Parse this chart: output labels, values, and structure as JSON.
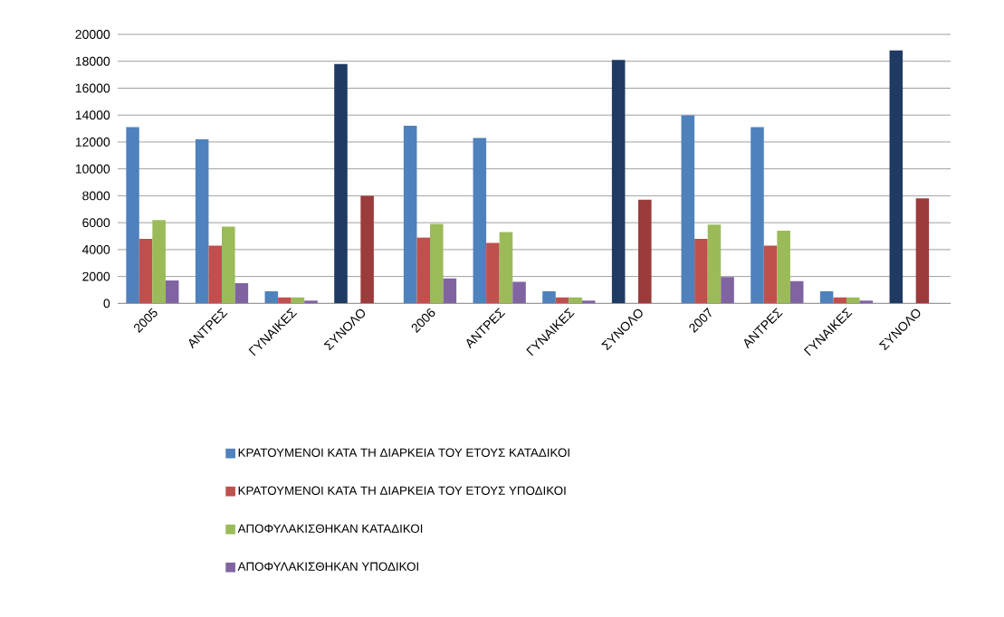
{
  "chart_data": {
    "type": "bar",
    "categories": [
      "2005",
      "ΑΝΤΡΕΣ",
      "ΓΥΝΑΙΚΕΣ",
      "ΣΥΝΟΛΟ",
      "2006",
      "ΑΝΤΡΕΣ",
      "ΓΥΝΑΙΚΕΣ",
      "ΣΥΝΟΛΟ",
      "2007",
      "ΑΝΤΡΕΣ",
      "ΓΥΝΑΙΚΕΣ",
      "ΣΥΝΟΛΟ"
    ],
    "series": [
      {
        "name": "ΚΡΑΤΟΥΜΕΝΟΙ ΚΑΤΑ ΤΗ ΔΙΑΡΚΕΙΑ ΤΟΥ ΕΤΟΥΣ ΚΑΤΑΔΙΚΟΙ",
        "color": "#4f81bd",
        "values": [
          13100,
          12200,
          900,
          17800,
          13200,
          12300,
          900,
          18100,
          14000,
          13100,
          900,
          18800
        ],
        "colors": [
          "#4f81bd",
          "#4f81bd",
          "#4f81bd",
          "#1f3b63",
          "#4f81bd",
          "#4f81bd",
          "#4f81bd",
          "#1f3b63",
          "#4f81bd",
          "#4f81bd",
          "#4f81bd",
          "#1f3b63"
        ]
      },
      {
        "name": "ΚΡΑΤΟΥΜΕΝΟΙ ΚΑΤΑ ΤΗ ΔΙΑΡΚΕΙΑ ΤΟΥ ΕΤΟΥΣ ΥΠΟΔΙΚΟΙ",
        "color": "#c0504d",
        "values": [
          4800,
          4300,
          450,
          null,
          4900,
          4500,
          450,
          null,
          4800,
          4300,
          450,
          null
        ]
      },
      {
        "name": "ΑΠΟΦΥΛΑΚΙΣΘΗΚΑΝ ΚΑΤΑΔΙΚΟΙ",
        "color": "#9bbb59",
        "values": [
          6200,
          5700,
          450,
          8000,
          5900,
          5300,
          450,
          7700,
          5850,
          5400,
          450,
          7800
        ],
        "colors": [
          "#9bbb59",
          "#9bbb59",
          "#9bbb59",
          "#9b3b3b",
          "#9bbb59",
          "#9bbb59",
          "#9bbb59",
          "#9b3b3b",
          "#9bbb59",
          "#9bbb59",
          "#9bbb59",
          "#9b3b3b"
        ]
      },
      {
        "name": "ΑΠΟΦΥΛΑΚΙΣΘΗΚΑΝ ΥΠΟΔΙΚΟΙ",
        "color": "#8064a2",
        "values": [
          1700,
          1500,
          200,
          null,
          1850,
          1600,
          200,
          null,
          1950,
          1650,
          200,
          null
        ]
      }
    ],
    "ylim": [
      0,
      20000
    ],
    "yticks": [
      0,
      2000,
      4000,
      6000,
      8000,
      10000,
      12000,
      14000,
      16000,
      18000,
      20000
    ],
    "grid": "y",
    "legend": "bottom"
  }
}
